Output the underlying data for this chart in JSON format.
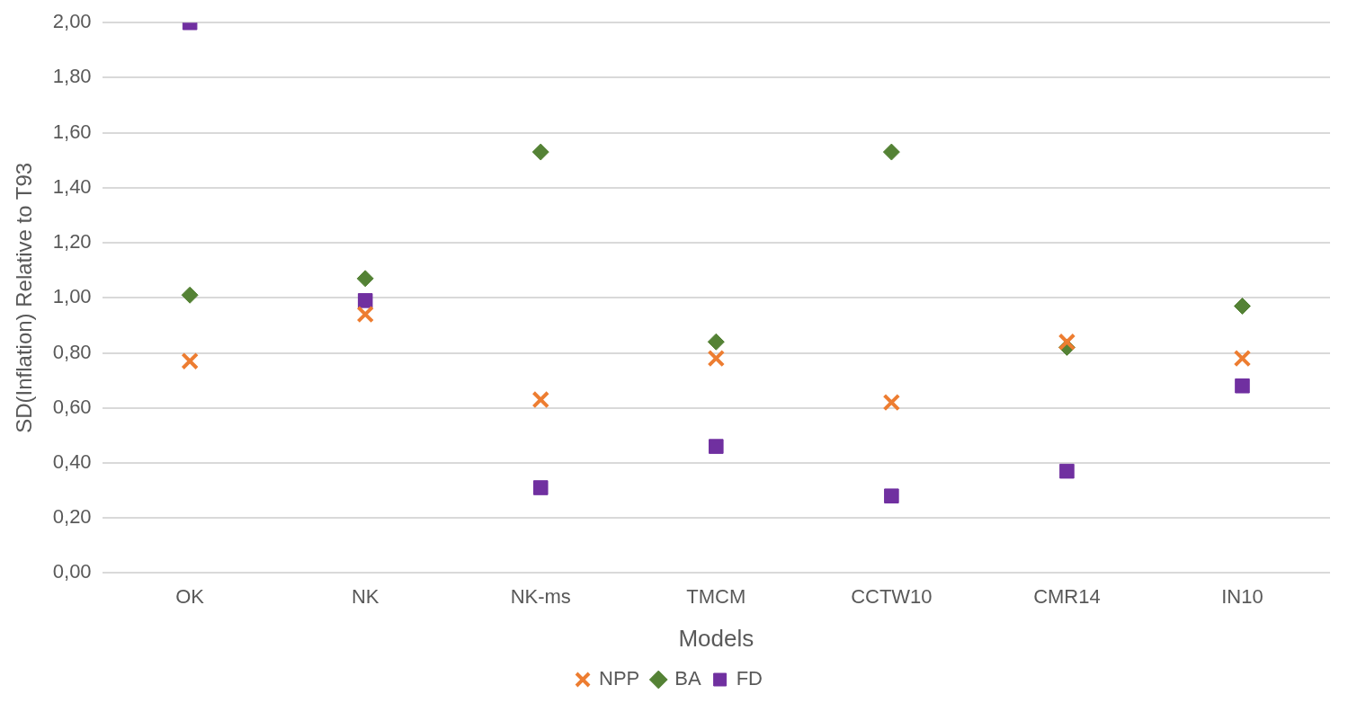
{
  "chart_data": {
    "type": "scatter",
    "xlabel": "Models",
    "ylabel": "SD(Inflation) Relative to T93",
    "categories": [
      "OK",
      "NK",
      "NK-ms",
      "TMCM",
      "CCTW10",
      "CMR14",
      "IN10"
    ],
    "series": [
      {
        "name": "NPP",
        "color": "#ed7d31",
        "marker": "cross",
        "values": [
          0.77,
          0.94,
          0.63,
          0.78,
          0.62,
          0.84,
          0.78
        ]
      },
      {
        "name": "BA",
        "color": "#548235",
        "marker": "diamond",
        "values": [
          1.01,
          1.07,
          1.53,
          0.84,
          1.53,
          0.82,
          0.97
        ]
      },
      {
        "name": "FD",
        "color": "#7030a0",
        "marker": "square",
        "values": [
          2.0,
          0.99,
          0.31,
          0.46,
          0.28,
          0.37,
          0.68
        ]
      }
    ],
    "ylim": [
      0,
      2
    ],
    "yticks": [
      {
        "value": 0,
        "label": "0,00"
      },
      {
        "value": 0.2,
        "label": "0,20"
      },
      {
        "value": 0.4,
        "label": "0,40"
      },
      {
        "value": 0.6,
        "label": "0,60"
      },
      {
        "value": 0.8,
        "label": "0,80"
      },
      {
        "value": 1,
        "label": "1,00"
      },
      {
        "value": 1.2,
        "label": "1,20"
      },
      {
        "value": 1.4,
        "label": "1,40"
      },
      {
        "value": 1.6,
        "label": "1,60"
      },
      {
        "value": 1.8,
        "label": "1,80"
      },
      {
        "value": 2,
        "label": "2,00"
      }
    ],
    "grid": "y",
    "legend": "bottom"
  }
}
